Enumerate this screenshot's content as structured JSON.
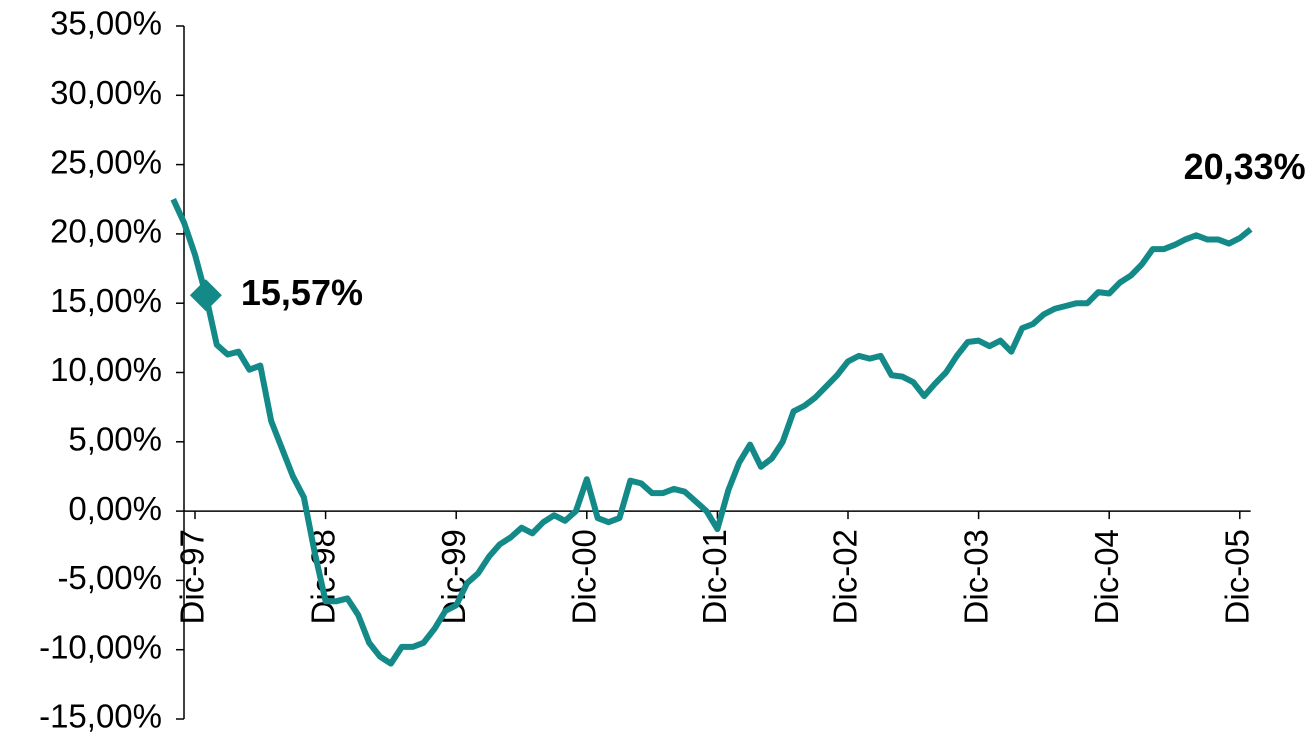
{
  "chart_data": {
    "type": "line",
    "categories": [
      null,
      null,
      "Dic-97",
      null,
      null,
      null,
      null,
      null,
      null,
      null,
      null,
      null,
      null,
      null,
      "Dic-98",
      null,
      null,
      null,
      null,
      null,
      null,
      null,
      null,
      null,
      null,
      null,
      "Dic-99",
      null,
      null,
      null,
      null,
      null,
      null,
      null,
      null,
      null,
      null,
      null,
      "Dic-00",
      null,
      null,
      null,
      null,
      null,
      null,
      null,
      null,
      null,
      null,
      null,
      "Dic-01",
      null,
      null,
      null,
      null,
      null,
      null,
      null,
      null,
      null,
      null,
      null,
      "Dic-02",
      null,
      null,
      null,
      null,
      null,
      null,
      null,
      null,
      null,
      null,
      null,
      "Dic-03",
      null,
      null,
      null,
      null,
      null,
      null,
      null,
      null,
      null,
      null,
      null,
      "Dic-04",
      null,
      null,
      null,
      null,
      null,
      null,
      null,
      null,
      null,
      null,
      null,
      "Dic-05",
      null
    ],
    "series": [
      {
        "color": "#138a88",
        "values": [
          22.5,
          20.8,
          18.5,
          15.57,
          12.0,
          11.3,
          11.5,
          10.2,
          10.5,
          6.5,
          4.5,
          2.5,
          1.0,
          -3.0,
          -6.5,
          -6.5,
          -6.3,
          -7.5,
          -9.5,
          -10.5,
          -11.0,
          -9.8,
          -9.8,
          -9.5,
          -8.5,
          -7.2,
          -6.8,
          -5.2,
          -4.5,
          -3.3,
          -2.4,
          -1.9,
          -1.2,
          -1.6,
          -0.8,
          -0.3,
          -0.7,
          0.0,
          2.3,
          -0.5,
          -0.8,
          -0.5,
          2.2,
          2.0,
          1.3,
          1.3,
          1.6,
          1.4,
          0.7,
          0.0,
          -1.3,
          1.5,
          3.5,
          4.8,
          3.2,
          3.8,
          5.0,
          7.2,
          7.6,
          8.2,
          9.0,
          9.8,
          10.8,
          11.2,
          11.0,
          11.2,
          9.8,
          9.7,
          9.3,
          8.3,
          9.2,
          10.0,
          11.2,
          12.2,
          12.3,
          11.9,
          12.3,
          11.5,
          13.2,
          13.5,
          14.2,
          14.6,
          14.8,
          15.0,
          15.0,
          15.8,
          15.7,
          16.5,
          17.0,
          17.8,
          18.9,
          18.9,
          19.2,
          19.6,
          19.9,
          19.6,
          19.6,
          19.3,
          19.7,
          20.33
        ],
        "value_labels": [
          null,
          null,
          null,
          "15,57%",
          null,
          null,
          null,
          null,
          null,
          null,
          null,
          null,
          null,
          null,
          null,
          null,
          null,
          null,
          null,
          null,
          null,
          null,
          null,
          null,
          null,
          null,
          null,
          null,
          null,
          null,
          null,
          null,
          null,
          null,
          null,
          null,
          null,
          null,
          null,
          null,
          null,
          null,
          null,
          null,
          null,
          null,
          null,
          null,
          null,
          null,
          null,
          null,
          null,
          null,
          null,
          null,
          null,
          null,
          null,
          null,
          null,
          null,
          null,
          null,
          null,
          null,
          null,
          null,
          null,
          null,
          null,
          null,
          null,
          null,
          null,
          null,
          null,
          null,
          null,
          null,
          null,
          null,
          null,
          null,
          null,
          null,
          null,
          null,
          null,
          null,
          null,
          null,
          null,
          null,
          null,
          null,
          null,
          null,
          null,
          "20,33%"
        ]
      }
    ],
    "ylim": [
      -15,
      35
    ],
    "yticks": [
      {
        "value": -15,
        "label": "-15,00%"
      },
      {
        "value": -10,
        "label": "-10,00%"
      },
      {
        "value": -5,
        "label": "-5,00%"
      },
      {
        "value": 0,
        "label": "0,00%"
      },
      {
        "value": 5,
        "label": "5,00%"
      },
      {
        "value": 10,
        "label": "10,00%"
      },
      {
        "value": 15,
        "label": "15,00%"
      },
      {
        "value": 20,
        "label": "20,00%"
      },
      {
        "value": 25,
        "label": "25,00%"
      },
      {
        "value": 30,
        "label": "30,00%"
      },
      {
        "value": 35,
        "label": "35,00%"
      }
    ]
  }
}
